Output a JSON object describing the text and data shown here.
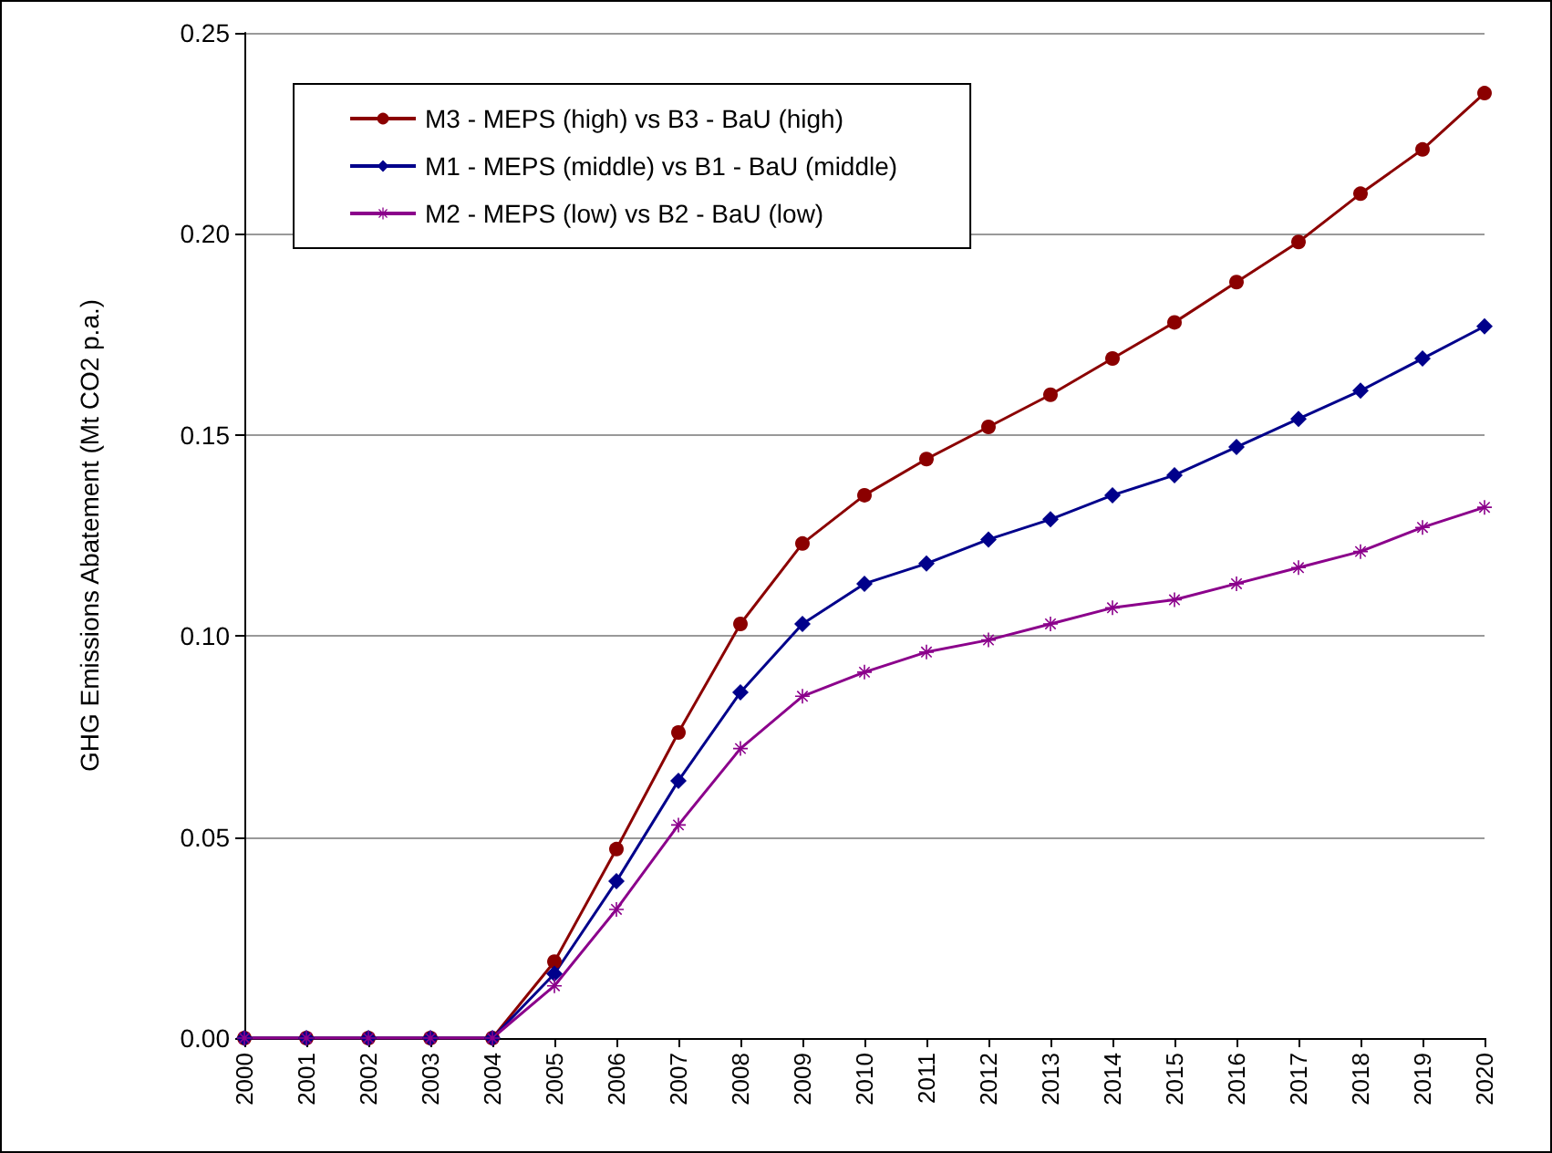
{
  "chart_data": {
    "type": "line",
    "ylabel": "GHG Emissions Abatement (Mt CO2 p.a.)",
    "categories": [
      "2000",
      "2001",
      "2002",
      "2003",
      "2004",
      "2005",
      "2006",
      "2007",
      "2008",
      "2009",
      "2010",
      "2011",
      "2012",
      "2013",
      "2014",
      "2015",
      "2016",
      "2017",
      "2018",
      "2019",
      "2020"
    ],
    "series": [
      {
        "name": "M3 - MEPS (high) vs B3 - BaU (high)",
        "color": "#8b0000",
        "marker": "circle",
        "values": [
          0,
          0,
          0,
          0,
          0,
          0.019,
          0.047,
          0.076,
          0.103,
          0.123,
          0.135,
          0.144,
          0.152,
          0.16,
          0.169,
          0.178,
          0.188,
          0.198,
          0.21,
          0.221,
          0.235
        ]
      },
      {
        "name": "M1 - MEPS (middle) vs B1 - BaU (middle)",
        "color": "#00008b",
        "marker": "diamond",
        "values": [
          0,
          0,
          0,
          0,
          0,
          0.016,
          0.039,
          0.064,
          0.086,
          0.103,
          0.113,
          0.118,
          0.124,
          0.129,
          0.135,
          0.14,
          0.147,
          0.154,
          0.161,
          0.169,
          0.177
        ]
      },
      {
        "name": "M2 - MEPS (low) vs B2 - BaU (low)",
        "color": "#8b008b",
        "marker": "cross",
        "values": [
          0,
          0,
          0,
          0,
          0,
          0.013,
          0.032,
          0.053,
          0.072,
          0.085,
          0.091,
          0.096,
          0.099,
          0.103,
          0.107,
          0.109,
          0.113,
          0.117,
          0.121,
          0.127,
          0.132
        ]
      }
    ],
    "ylim": [
      0,
      0.25
    ],
    "yticks": [
      {
        "value": 0,
        "label": "0.00"
      },
      {
        "value": 0.05,
        "label": "0.05"
      },
      {
        "value": 0.1,
        "label": "0.10"
      },
      {
        "value": 0.15,
        "label": "0.15"
      },
      {
        "value": 0.2,
        "label": "0.20"
      },
      {
        "value": 0.25,
        "label": "0.25"
      }
    ],
    "grid": "y",
    "legend": "top left",
    "line_style": "solid"
  }
}
